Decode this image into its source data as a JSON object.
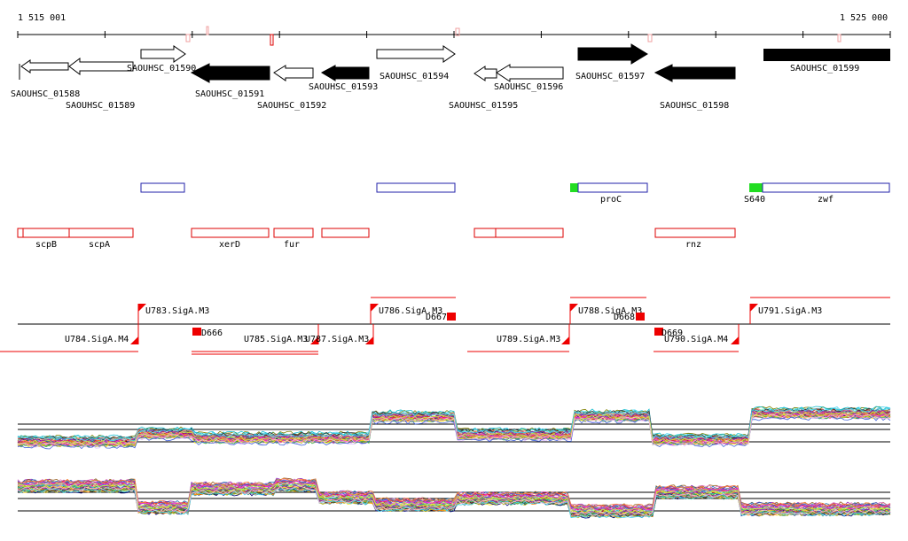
{
  "coords": {
    "start_label": "1 515 001",
    "end_label": "1 525 000"
  },
  "genes": [
    {
      "label": "SAOUHSC_01588",
      "strand": "-",
      "filled": false
    },
    {
      "label": "SAOUHSC_01589",
      "strand": "-",
      "filled": false
    },
    {
      "label": "SAOUHSC_01590",
      "strand": "+",
      "filled": false
    },
    {
      "label": "SAOUHSC_01591",
      "strand": "-",
      "filled": true
    },
    {
      "label": "SAOUHSC_01592",
      "strand": "-",
      "filled": false
    },
    {
      "label": "SAOUHSC_01593",
      "strand": "-",
      "filled": true
    },
    {
      "label": "SAOUHSC_01594",
      "strand": "+",
      "filled": false
    },
    {
      "label": "SAOUHSC_01595",
      "strand": "-",
      "filled": false
    },
    {
      "label": "SAOUHSC_01596",
      "strand": "-",
      "filled": false
    },
    {
      "label": "SAOUHSC_01597",
      "strand": "+",
      "filled": true
    },
    {
      "label": "SAOUHSC_01598",
      "strand": "-",
      "filled": true
    },
    {
      "label": "SAOUHSC_01599",
      "strand": "+",
      "filled": true
    }
  ],
  "forward_names": [
    {
      "label": "proC",
      "color": "#2222aa"
    },
    {
      "label": "zwf",
      "color": "#2222aa"
    },
    {
      "label": "S640",
      "color": "#22cc22"
    }
  ],
  "reverse_names": [
    {
      "label": "scpB"
    },
    {
      "label": "scpA"
    },
    {
      "label": "xerD"
    },
    {
      "label": "fur"
    },
    {
      "label": "rnz"
    }
  ],
  "promoters": [
    {
      "label": "U783.SigA.M3"
    },
    {
      "label": "U784.SigA.M4"
    },
    {
      "label": "U785.SigA.M3"
    },
    {
      "label": "U786.SigA.M3"
    },
    {
      "label": "U787.SigA.M3"
    },
    {
      "label": "U788.SigA.M3"
    },
    {
      "label": "U789.SigA.M3"
    },
    {
      "label": "U790.SigA.M4"
    },
    {
      "label": "U791.SigA.M3"
    }
  ],
  "terminators": [
    {
      "label": "D666"
    },
    {
      "label": "D667"
    },
    {
      "label": "D668"
    },
    {
      "label": "D669"
    }
  ],
  "colors": {
    "gene_outline": "#000000",
    "name_blue": "#2222aa",
    "name_red": "#dd0000",
    "promoter_red": "#ee0000",
    "highlight_green": "#22dd22"
  },
  "expression_tracks": {
    "forward_samples": 40,
    "reverse_samples": 40
  }
}
